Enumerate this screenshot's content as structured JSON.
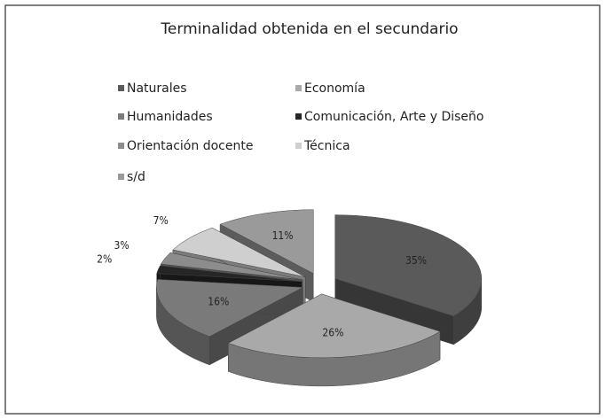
{
  "chart_data": {
    "type": "pie3d",
    "title": "Terminalidad obtenida en el secundario",
    "categories": [
      "Naturales",
      "Economía",
      "Humanidades",
      "Comunicación, Arte y Diseño",
      "Orientación docente",
      "Técnica",
      "s/d"
    ],
    "values": [
      35,
      26,
      16,
      2,
      3,
      7,
      11
    ],
    "value_labels": [
      "35%",
      "26%",
      "16%",
      "2%",
      "3%",
      "7%",
      "11%"
    ],
    "colors": [
      "#5a5a5a",
      "#a9a9a9",
      "#7a7a7a",
      "#262626",
      "#8c8c8c",
      "#cfcfcf",
      "#9a9a9a"
    ]
  }
}
